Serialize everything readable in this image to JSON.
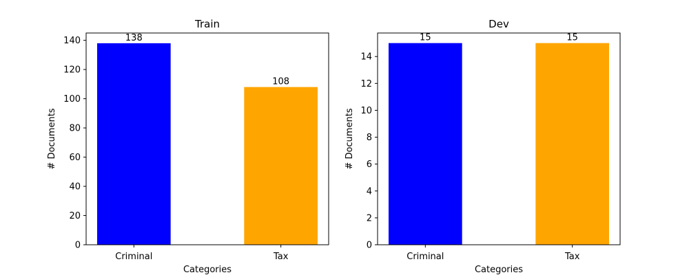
{
  "chart_data": [
    {
      "type": "bar",
      "title": "Train",
      "xlabel": "Categories",
      "ylabel": "# Documents",
      "categories": [
        "Criminal",
        "Tax"
      ],
      "values": [
        138,
        108
      ],
      "data_labels": [
        "138",
        "108"
      ],
      "colors": [
        "#0000ff",
        "#ffa500"
      ],
      "ylim": [
        0,
        145
      ],
      "yticks": [
        0,
        20,
        40,
        60,
        80,
        100,
        120,
        140
      ],
      "grid": false
    },
    {
      "type": "bar",
      "title": "Dev",
      "xlabel": "Categories",
      "ylabel": "# Documents",
      "categories": [
        "Criminal",
        "Tax"
      ],
      "values": [
        15,
        15
      ],
      "data_labels": [
        "15",
        "15"
      ],
      "colors": [
        "#0000ff",
        "#ffa500"
      ],
      "ylim": [
        0,
        15.75
      ],
      "yticks": [
        0,
        2,
        4,
        6,
        8,
        10,
        12,
        14
      ],
      "grid": false
    }
  ]
}
